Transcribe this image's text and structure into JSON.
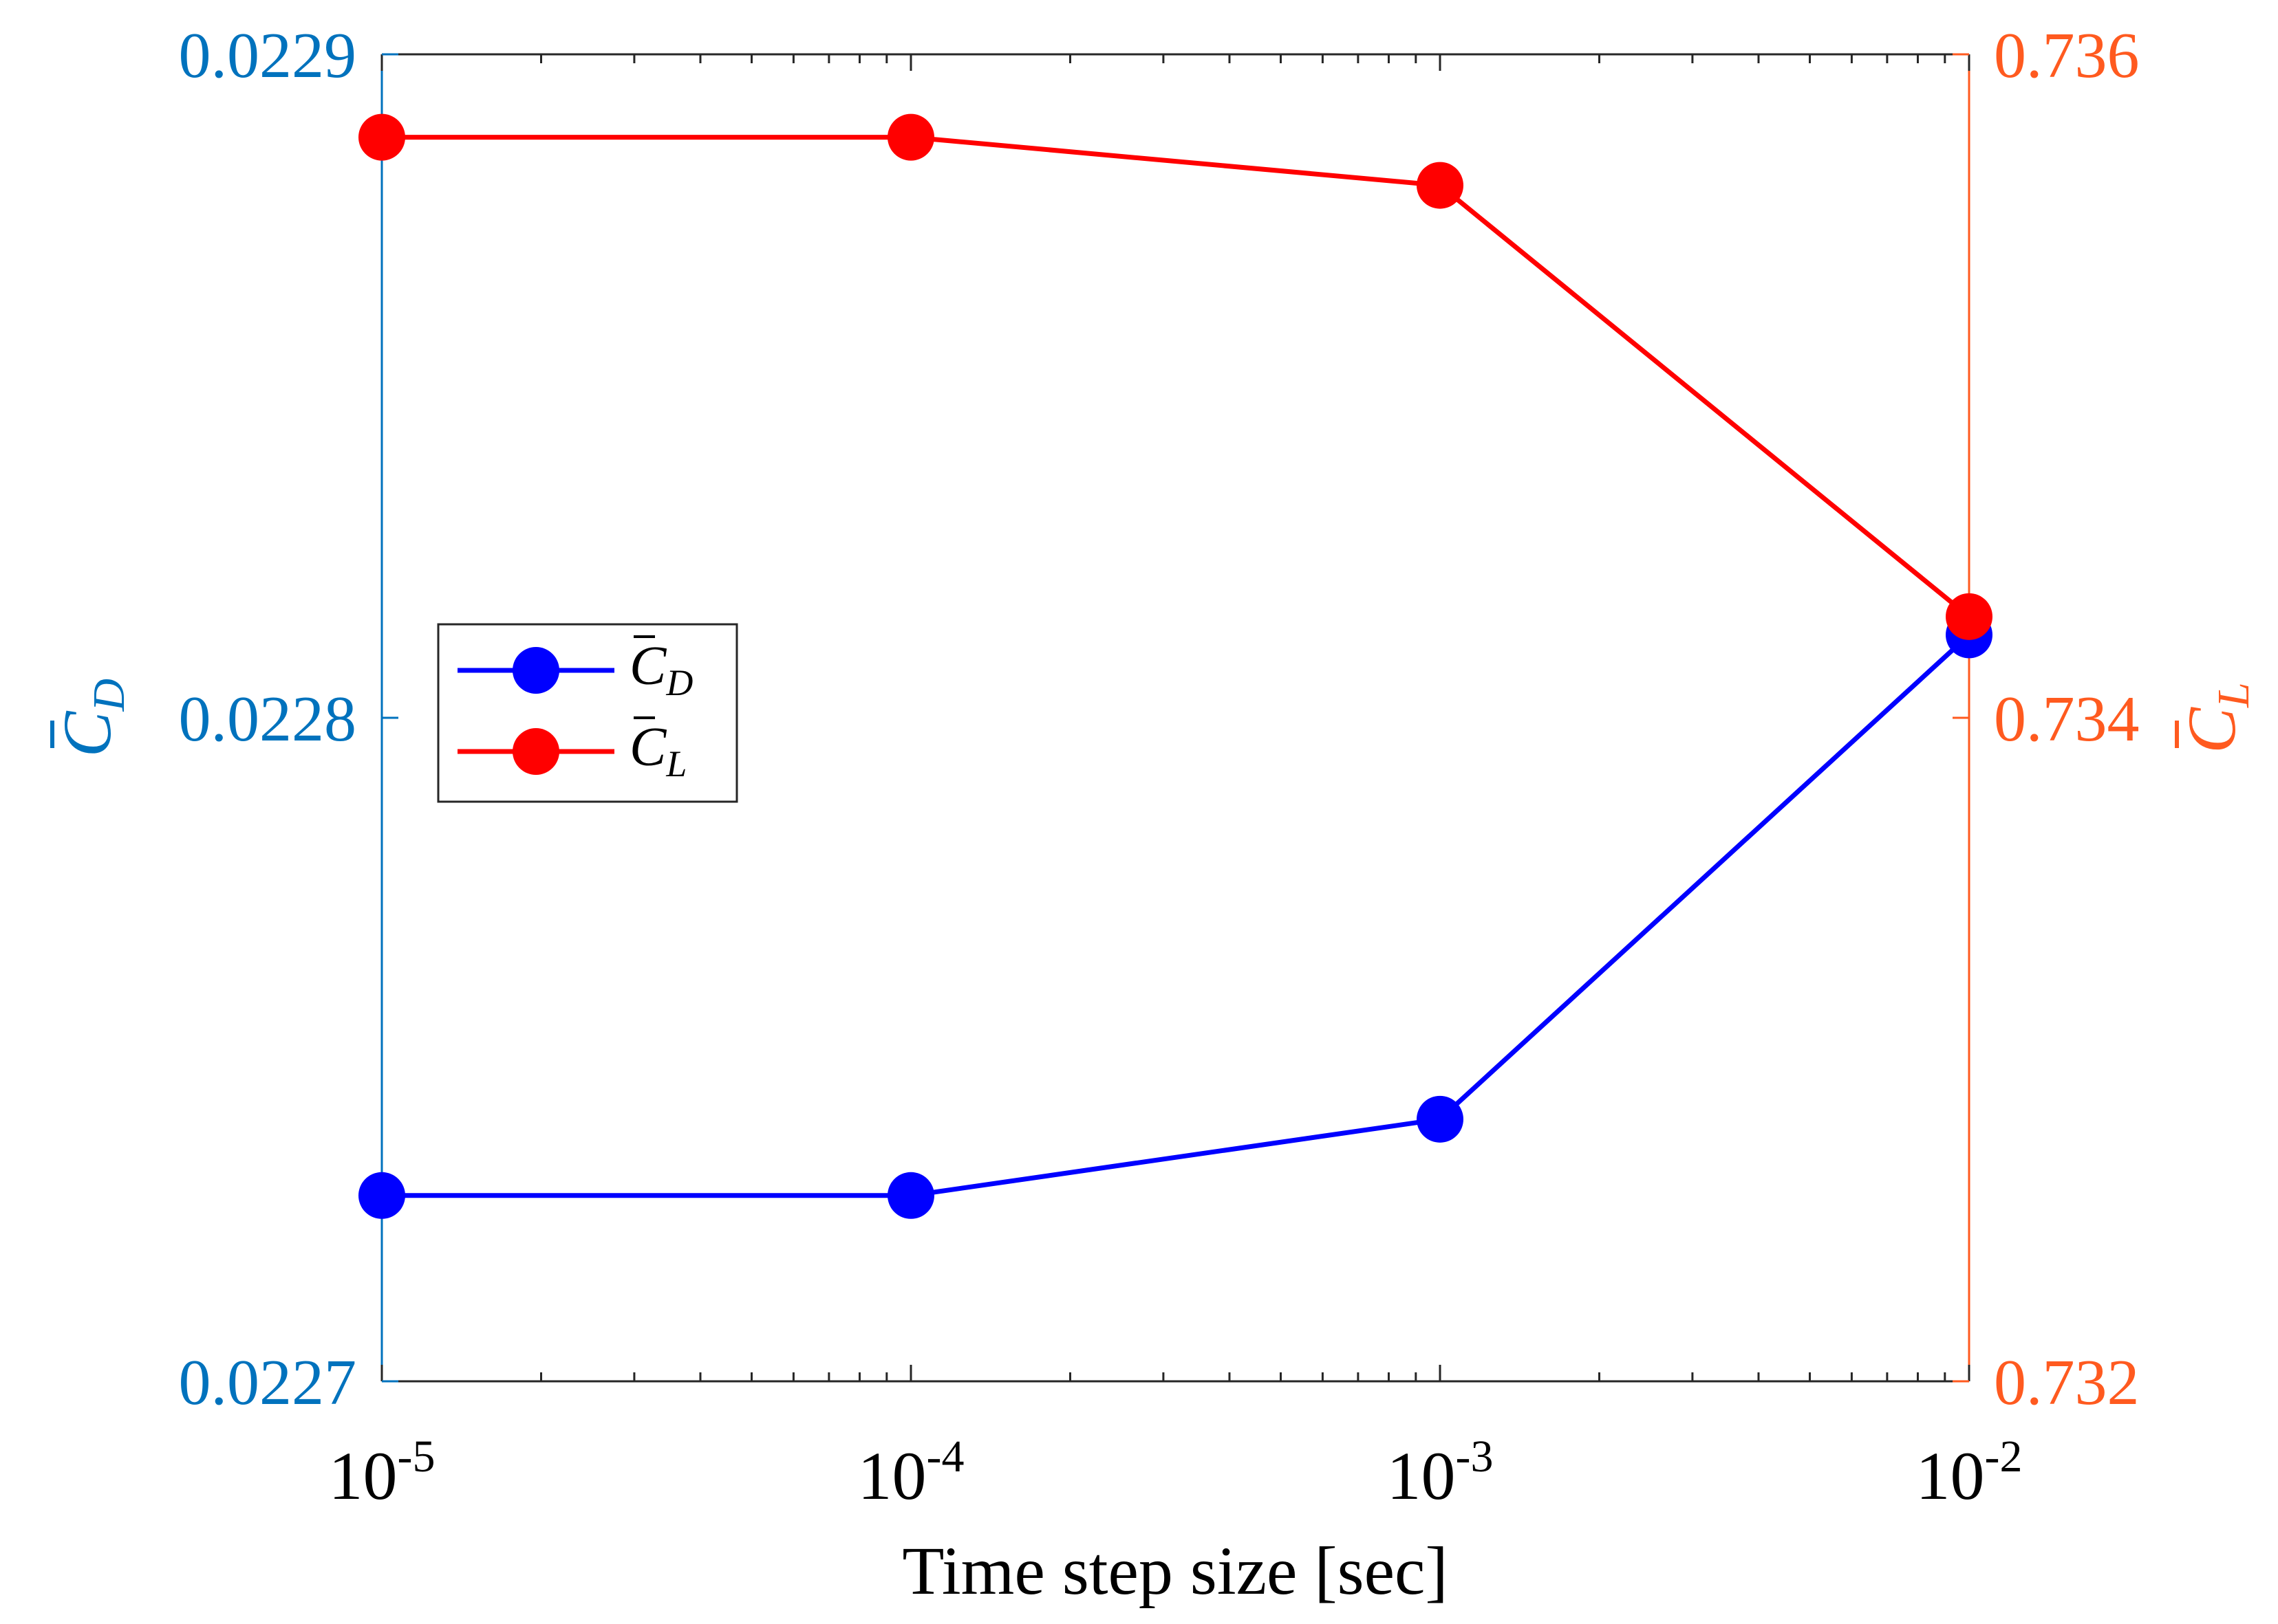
{
  "chart_data": {
    "type": "line",
    "xlabel": "Time step size [sec]",
    "xscale": "log",
    "x": [
      1e-05,
      0.0001,
      0.001,
      0.01
    ],
    "xticks": [
      {
        "base": "10",
        "exp": "-5"
      },
      {
        "base": "10",
        "exp": "-4"
      },
      {
        "base": "10",
        "exp": "-3"
      },
      {
        "base": "10",
        "exp": "-2"
      }
    ],
    "y_left": {
      "label_base": "C",
      "label_sub": "D",
      "ylim": [
        0.0227,
        0.0229
      ],
      "ticks": [
        "0.0229",
        "0.0228",
        "0.0227"
      ],
      "color": "#0072BD"
    },
    "y_right": {
      "label_base": "C",
      "label_sub": "L",
      "ylim": [
        0.732,
        0.736
      ],
      "ticks": [
        "0.736",
        "0.734",
        "0.732"
      ],
      "color": "#FF5A1F"
    },
    "series": [
      {
        "name": "C_D",
        "label_base": "C",
        "label_sub": "D",
        "axis": "left",
        "color": "#0000FF",
        "values": [
          0.022728,
          0.022728,
          0.0227395,
          0.0228125
        ]
      },
      {
        "name": "C_L",
        "label_base": "C",
        "label_sub": "L",
        "axis": "right",
        "color": "#FF0000",
        "values": [
          0.73575,
          0.73575,
          0.735605,
          0.734305
        ]
      }
    ],
    "legend": "center-left"
  }
}
